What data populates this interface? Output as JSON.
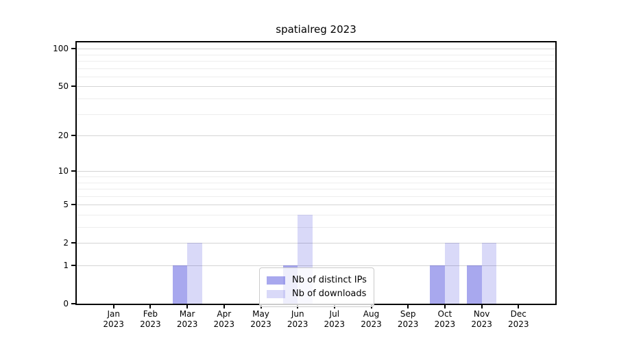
{
  "chart_data": {
    "type": "bar",
    "title": "spatialreg 2023",
    "categories": [
      {
        "month": "Jan",
        "year": "2023"
      },
      {
        "month": "Feb",
        "year": "2023"
      },
      {
        "month": "Mar",
        "year": "2023"
      },
      {
        "month": "Apr",
        "year": "2023"
      },
      {
        "month": "May",
        "year": "2023"
      },
      {
        "month": "Jun",
        "year": "2023"
      },
      {
        "month": "Jul",
        "year": "2023"
      },
      {
        "month": "Aug",
        "year": "2023"
      },
      {
        "month": "Sep",
        "year": "2023"
      },
      {
        "month": "Oct",
        "year": "2023"
      },
      {
        "month": "Nov",
        "year": "2023"
      },
      {
        "month": "Dec",
        "year": "2023"
      }
    ],
    "series": [
      {
        "name": "Nb of distinct IPs",
        "color_hex": "#a9a9f0",
        "fill": "rgba(0,0,205,0.34)",
        "values": [
          0,
          0,
          1,
          0,
          0,
          1,
          0,
          0,
          0,
          1,
          1,
          0
        ]
      },
      {
        "name": "Nb of downloads",
        "color_hex": "#d9d9f7",
        "fill": "rgba(0,0,205,0.15)",
        "values": [
          0,
          0,
          2,
          0,
          0,
          4,
          0,
          0,
          0,
          2,
          2,
          0
        ]
      }
    ],
    "y_axis": {
      "scale": "log1p",
      "ticks": [
        0,
        1,
        2,
        5,
        10,
        20,
        50,
        100
      ],
      "minor_ticks": [
        3,
        4,
        6,
        7,
        8,
        9,
        30,
        40,
        60,
        70,
        80,
        90
      ],
      "ylim": [
        0,
        100
      ]
    },
    "x_axis": {
      "label": "",
      "months_count": 12
    },
    "legend": {
      "position": "bottom-center"
    },
    "grid": true,
    "colors": {
      "axis": "#000000",
      "grid_major": "#d4d4d4",
      "grid_minor": "#ededed",
      "background": "#ffffff"
    }
  }
}
